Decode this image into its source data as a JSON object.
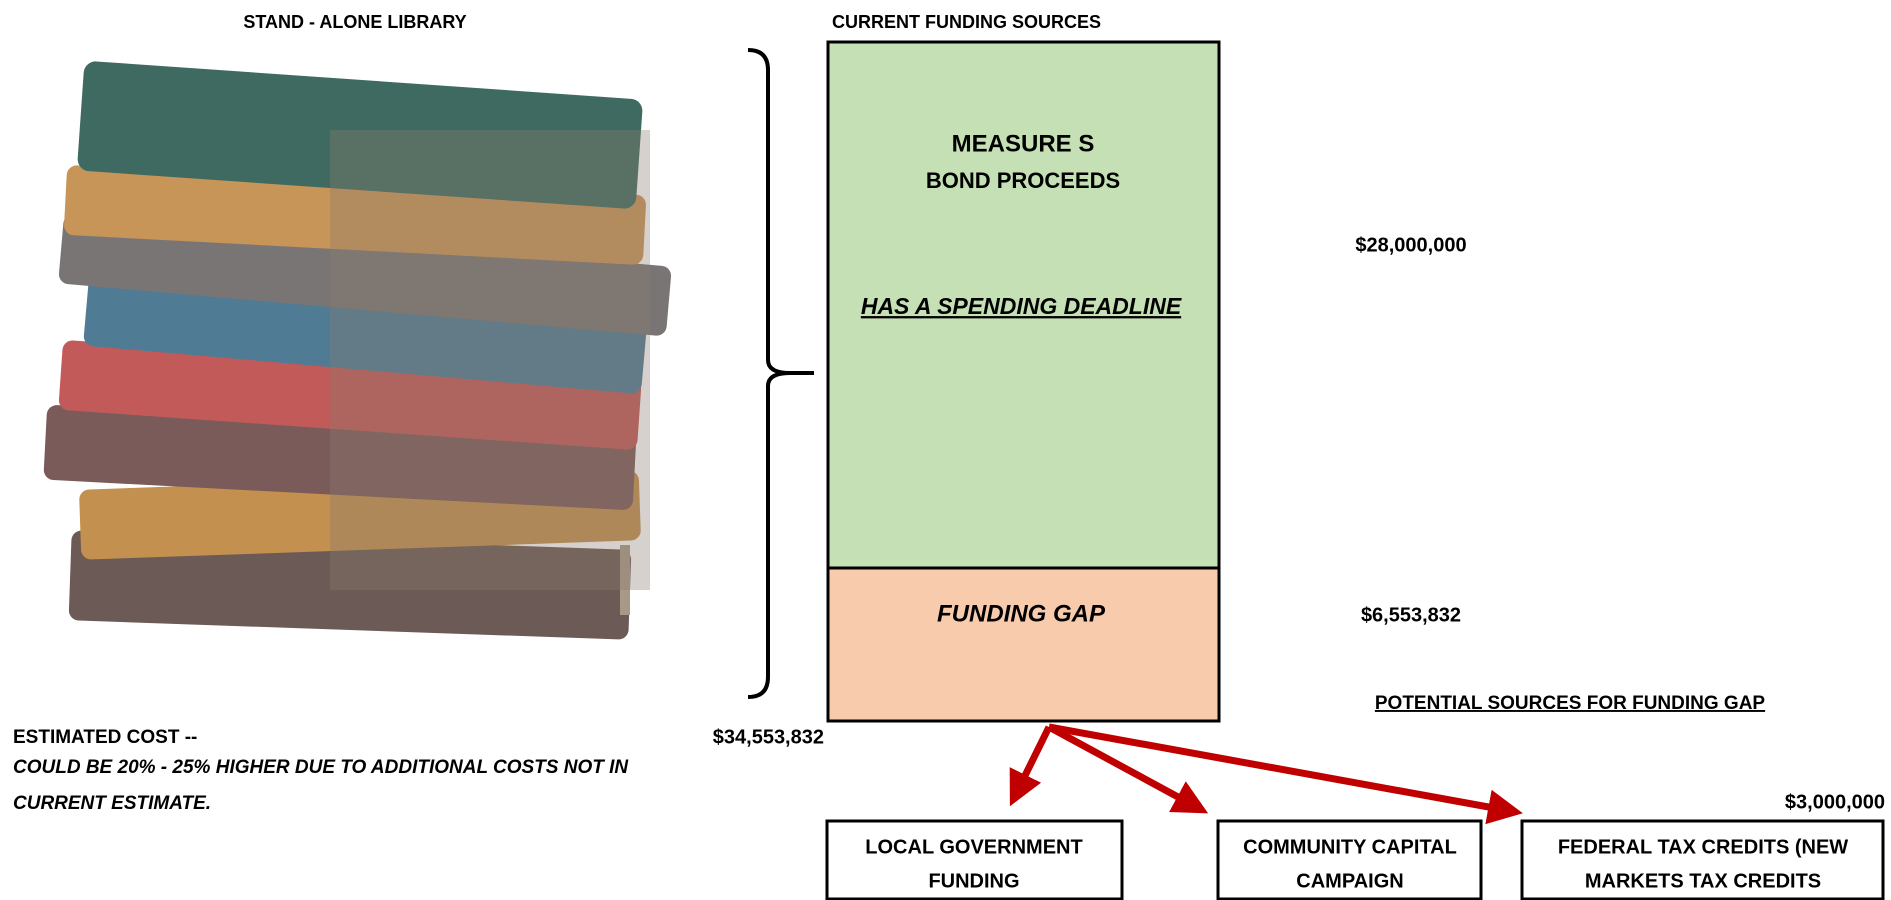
{
  "header": {
    "left_title": "STAND - ALONE LIBRARY",
    "center_title": "CURRENT FUNDING SOURCES"
  },
  "funding": {
    "measure_line1": "MEASURE S",
    "measure_line2": "BOND PROCEEDS",
    "deadline": "HAS A SPENDING DEADLINE",
    "measure_amount": "$28,000,000",
    "gap_label": "FUNDING GAP",
    "gap_amount": "$6,553,832"
  },
  "cost": {
    "label": "ESTIMATED COST --",
    "amount": "$34,553,832",
    "note_line1": "COULD BE 20% - 25% HIGHER DUE TO ADDITIONAL COSTS NOT IN",
    "note_line2": "CURRENT ESTIMATE."
  },
  "potential": {
    "title": "POTENTIAL SOURCES FOR FUNDING GAP",
    "sources": [
      {
        "lines": [
          "LOCAL GOVERNMENT",
          "FUNDING"
        ]
      },
      {
        "lines": [
          "COMMUNITY CAPITAL",
          "CAMPAIGN"
        ]
      },
      {
        "lines": [
          "FEDERAL TAX CREDITS (NEW",
          "MARKETS TAX CREDITS"
        ]
      }
    ],
    "federal_amount": "$3,000,000"
  }
}
